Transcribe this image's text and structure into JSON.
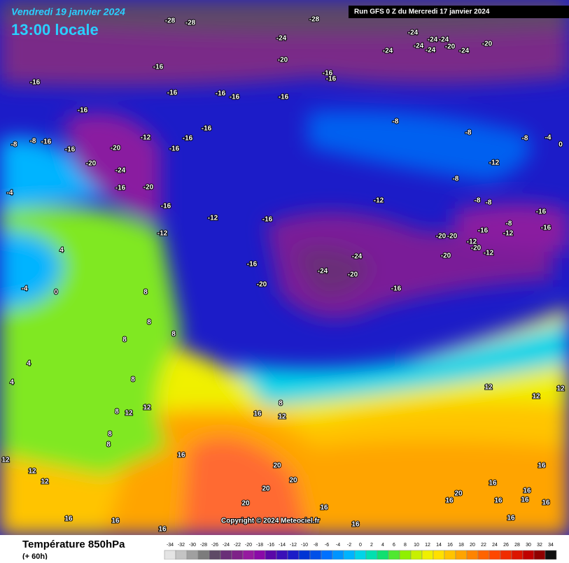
{
  "header": {
    "date": "Vendredi 19 janvier 2024",
    "time": "13:00 locale",
    "run": "Run GFS 0 Z du Mercredi 17 janvier 2024"
  },
  "copyright": "Copyright © 2024 Meteociel.fr",
  "legend": {
    "title": "Température 850hPa",
    "subtitle": "(+ 60h)",
    "levels": [
      -34,
      -32,
      -30,
      -28,
      -26,
      -24,
      -22,
      -20,
      -18,
      -16,
      -14,
      -12,
      -10,
      -8,
      -6,
      -4,
      -2,
      0,
      2,
      4,
      6,
      8,
      10,
      12,
      14,
      16,
      18,
      20,
      22,
      24,
      26,
      28,
      30,
      32,
      34
    ],
    "colors": [
      "#e4e4e4",
      "#c4c4c4",
      "#a0a0a0",
      "#7c7c7c",
      "#5e4a66",
      "#6a2e78",
      "#7e2288",
      "#961aa0",
      "#8a0aa8",
      "#5a08a8",
      "#3a10b8",
      "#1c1cc8",
      "#0034d4",
      "#0050e8",
      "#0070ff",
      "#0094ff",
      "#00b4ff",
      "#00d4e8",
      "#00e0b0",
      "#10e070",
      "#50e830",
      "#90f000",
      "#c8f000",
      "#f0f000",
      "#ffe000",
      "#ffc400",
      "#ffa400",
      "#ff8400",
      "#ff6400",
      "#ff4800",
      "#f02c00",
      "#dc1400",
      "#c00000",
      "#900000",
      "#101010"
    ]
  },
  "contour_labels": [
    -28,
    -28,
    -28,
    -24,
    -24,
    -24,
    -24,
    -24,
    -24,
    -24,
    -24,
    -20,
    -20,
    -20,
    -16,
    -16,
    -16,
    -16,
    -16,
    -16,
    -16,
    -16,
    -16,
    -16,
    -16,
    -16,
    -12,
    -20,
    -20,
    -24,
    -16,
    -20,
    -8,
    -8,
    -16,
    -16,
    -8,
    -8,
    -8,
    -4,
    0,
    -12,
    -8,
    -12,
    -8,
    -8,
    -16,
    -8,
    -16,
    -16,
    -12,
    -16,
    -12,
    -16,
    -12,
    -20,
    -20,
    -12,
    -20,
    -12,
    -20,
    -24,
    -24,
    -20,
    -16,
    -16,
    -20,
    -4,
    4,
    -4,
    0,
    8,
    8,
    8,
    8,
    4,
    4,
    8,
    8,
    12,
    12,
    8,
    8,
    12,
    12,
    12,
    16,
    16,
    12,
    8,
    12,
    12,
    12,
    16,
    16,
    16,
    16,
    16,
    16,
    16,
    20,
    16,
    16,
    16,
    16,
    16,
    20,
    20,
    20,
    20,
    16
  ]
}
